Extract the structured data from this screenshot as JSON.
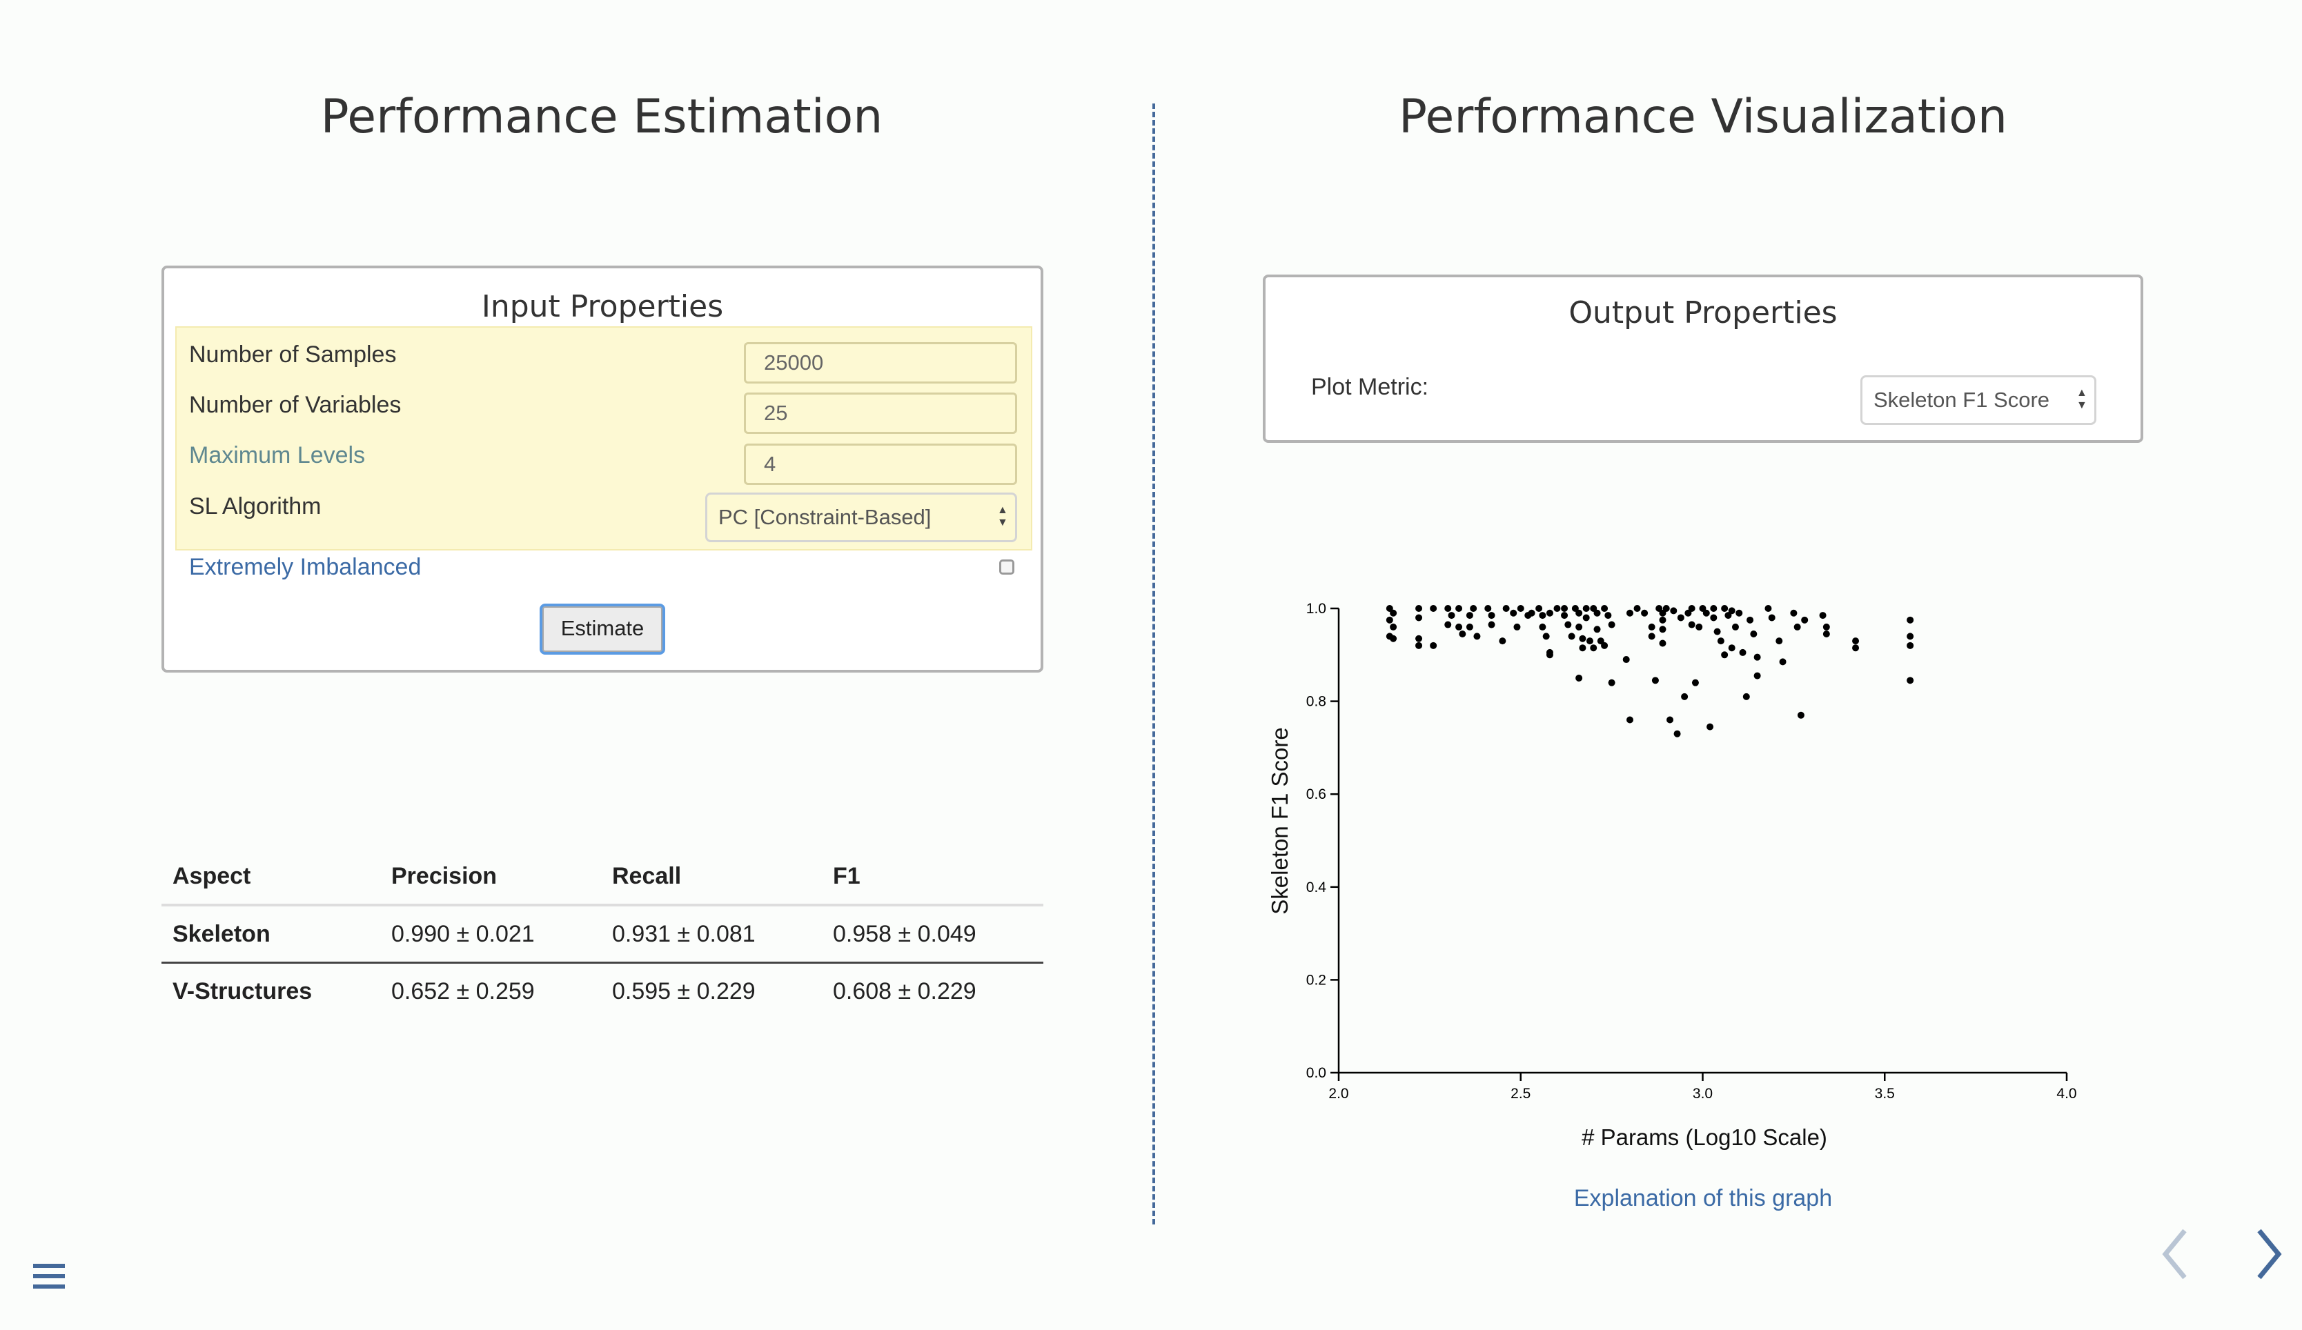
{
  "left": {
    "title": "Performance Estimation",
    "input_panel": {
      "title": "Input Properties",
      "fields": [
        {
          "label": "Number of Samples",
          "value": "25000"
        },
        {
          "label": "Number of Variables",
          "value": "25"
        },
        {
          "label": "Maximum Levels",
          "value": "4"
        }
      ],
      "algorithm_label": "SL Algorithm",
      "algorithm_value": "PC [Constraint-Based]",
      "imbalanced_label": "Extremely Imbalanced",
      "imbalanced_checked": false,
      "estimate_button": "Estimate"
    },
    "results": {
      "headers": [
        "Aspect",
        "Precision",
        "Recall",
        "F1"
      ],
      "rows": [
        {
          "aspect": "Skeleton",
          "precision": "0.990 ± 0.021",
          "recall": "0.931 ± 0.081",
          "f1": "0.958 ± 0.049"
        },
        {
          "aspect": "V-Structures",
          "precision": "0.652 ± 0.259",
          "recall": "0.595 ± 0.229",
          "f1": "0.608 ± 0.229"
        }
      ]
    }
  },
  "right": {
    "title": "Performance Visualization",
    "output_panel": {
      "title": "Output Properties",
      "plot_metric_label": "Plot Metric:",
      "plot_metric_value": "Skeleton F1 Score"
    },
    "explanation_link": "Explanation of this graph"
  },
  "chart_data": {
    "type": "scatter",
    "xlabel": "# Params (Log10 Scale)",
    "ylabel": "Skeleton F1 Score",
    "xlim": [
      2.0,
      4.0
    ],
    "ylim": [
      0.0,
      1.0
    ],
    "xticks": [
      "2.0",
      "2.5",
      "3.0",
      "3.5",
      "4.0"
    ],
    "yticks": [
      "0.0",
      "0.2",
      "0.4",
      "0.6",
      "0.8",
      "1.0"
    ],
    "points": [
      [
        2.14,
        1.0
      ],
      [
        2.15,
        0.99
      ],
      [
        2.14,
        0.975
      ],
      [
        2.15,
        0.96
      ],
      [
        2.14,
        0.94
      ],
      [
        2.15,
        0.935
      ],
      [
        2.22,
        1.0
      ],
      [
        2.22,
        0.98
      ],
      [
        2.22,
        0.935
      ],
      [
        2.22,
        0.92
      ],
      [
        2.26,
        1.0
      ],
      [
        2.26,
        0.92
      ],
      [
        2.3,
        1.0
      ],
      [
        2.31,
        0.985
      ],
      [
        2.3,
        0.965
      ],
      [
        2.33,
        1.0
      ],
      [
        2.33,
        0.96
      ],
      [
        2.34,
        0.945
      ],
      [
        2.36,
        0.985
      ],
      [
        2.36,
        0.96
      ],
      [
        2.37,
        1.0
      ],
      [
        2.38,
        0.94
      ],
      [
        2.41,
        1.0
      ],
      [
        2.42,
        0.985
      ],
      [
        2.42,
        0.965
      ],
      [
        2.45,
        0.93
      ],
      [
        2.46,
        1.0
      ],
      [
        2.48,
        0.99
      ],
      [
        2.49,
        0.96
      ],
      [
        2.5,
        1.0
      ],
      [
        2.52,
        0.985
      ],
      [
        2.53,
        0.99
      ],
      [
        2.55,
        1.0
      ],
      [
        2.56,
        0.985
      ],
      [
        2.56,
        0.96
      ],
      [
        2.57,
        0.94
      ],
      [
        2.58,
        0.905
      ],
      [
        2.58,
        0.9
      ],
      [
        2.62,
        1.0
      ],
      [
        2.62,
        0.985
      ],
      [
        2.63,
        0.965
      ],
      [
        2.64,
        0.94
      ],
      [
        2.65,
        1.0
      ],
      [
        2.66,
        0.99
      ],
      [
        2.66,
        0.96
      ],
      [
        2.67,
        0.935
      ],
      [
        2.67,
        0.915
      ],
      [
        2.68,
        1.0
      ],
      [
        2.68,
        0.98
      ],
      [
        2.69,
        0.93
      ],
      [
        2.7,
        0.915
      ],
      [
        2.7,
        1.0
      ],
      [
        2.71,
        0.99
      ],
      [
        2.71,
        0.955
      ],
      [
        2.72,
        0.93
      ],
      [
        2.73,
        0.92
      ],
      [
        2.73,
        1.0
      ],
      [
        2.74,
        0.985
      ],
      [
        2.75,
        0.965
      ],
      [
        2.66,
        0.85
      ],
      [
        2.75,
        0.84
      ],
      [
        2.79,
        0.89
      ],
      [
        2.8,
        0.76
      ],
      [
        2.8,
        0.99
      ],
      [
        2.82,
        1.0
      ],
      [
        2.84,
        0.99
      ],
      [
        2.86,
        0.96
      ],
      [
        2.86,
        0.94
      ],
      [
        2.87,
        0.845
      ],
      [
        2.88,
        1.0
      ],
      [
        2.89,
        0.99
      ],
      [
        2.89,
        0.975
      ],
      [
        2.89,
        0.955
      ],
      [
        2.89,
        0.925
      ],
      [
        2.91,
        0.76
      ],
      [
        2.92,
        0.995
      ],
      [
        2.93,
        0.73
      ],
      [
        2.94,
        0.98
      ],
      [
        2.95,
        0.81
      ],
      [
        2.97,
        1.0
      ],
      [
        2.97,
        0.965
      ],
      [
        2.98,
        0.84
      ],
      [
        2.99,
        0.96
      ],
      [
        3.0,
        1.0
      ],
      [
        3.01,
        0.99
      ],
      [
        3.02,
        0.745
      ],
      [
        3.03,
        0.98
      ],
      [
        3.03,
        1.0
      ],
      [
        3.04,
        0.95
      ],
      [
        3.05,
        0.93
      ],
      [
        3.06,
        0.9
      ],
      [
        3.07,
        0.985
      ],
      [
        3.08,
        0.915
      ],
      [
        3.09,
        0.96
      ],
      [
        3.1,
        0.99
      ],
      [
        3.11,
        0.905
      ],
      [
        3.12,
        0.81
      ],
      [
        3.13,
        0.975
      ],
      [
        3.14,
        0.945
      ],
      [
        3.15,
        0.895
      ],
      [
        3.15,
        0.855
      ],
      [
        3.18,
        1.0
      ],
      [
        3.19,
        0.98
      ],
      [
        3.21,
        0.93
      ],
      [
        3.22,
        0.885
      ],
      [
        3.25,
        0.99
      ],
      [
        3.26,
        0.96
      ],
      [
        3.27,
        0.77
      ],
      [
        3.28,
        0.975
      ],
      [
        3.33,
        0.985
      ],
      [
        3.34,
        0.96
      ],
      [
        3.34,
        0.945
      ],
      [
        3.42,
        0.93
      ],
      [
        3.42,
        0.915
      ],
      [
        3.57,
        0.975
      ],
      [
        3.57,
        0.94
      ],
      [
        3.57,
        0.92
      ],
      [
        3.57,
        0.845
      ],
      [
        3.08,
        0.995
      ],
      [
        3.06,
        1.0
      ],
      [
        2.9,
        1.0
      ],
      [
        2.96,
        0.99
      ],
      [
        2.6,
        1.0
      ],
      [
        2.58,
        0.99
      ]
    ]
  }
}
